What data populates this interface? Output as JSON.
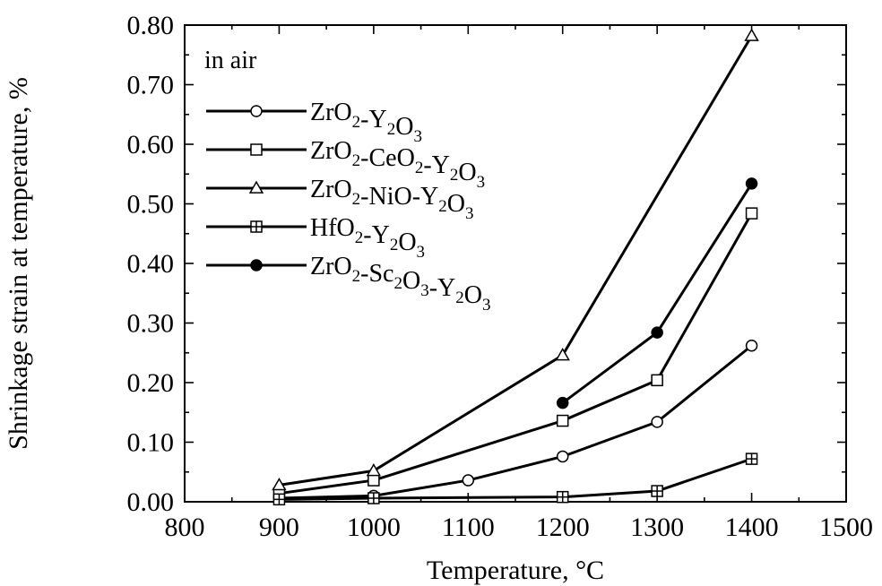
{
  "chart_data": {
    "type": "line",
    "title": "",
    "xlabel": "Temperature, °C",
    "ylabel": "Shrinkage strain at temperature, %",
    "xlim": [
      800,
      1500
    ],
    "ylim": [
      0.0,
      0.8
    ],
    "xticks": [
      800,
      900,
      1000,
      1100,
      1200,
      1300,
      1400,
      1500
    ],
    "xtick_labels": [
      "800",
      "900",
      "1000",
      "1100",
      "1200",
      "1300",
      "1400",
      "1500"
    ],
    "yticks": [
      0.0,
      0.1,
      0.2,
      0.3,
      0.4,
      0.5,
      0.6,
      0.7,
      0.8
    ],
    "ytick_labels": [
      "0.00",
      "0.10",
      "0.20",
      "0.30",
      "0.40",
      "0.50",
      "0.60",
      "0.70",
      "0.80"
    ],
    "grid": false,
    "legend_title": "in air",
    "legend_position": "top-left",
    "series": [
      {
        "name": "ZrO2-Y2O3",
        "marker": "open-circle",
        "x": [
          900,
          1000,
          1100,
          1200,
          1300,
          1400
        ],
        "y": [
          0.006,
          0.01,
          0.036,
          0.076,
          0.134,
          0.262
        ]
      },
      {
        "name": "ZrO2-CeO2-Y2O3",
        "marker": "open-square",
        "x": [
          900,
          1000,
          1200,
          1300,
          1400
        ],
        "y": [
          0.014,
          0.036,
          0.136,
          0.204,
          0.484
        ]
      },
      {
        "name": "ZrO2-NiO-Y2O3",
        "marker": "open-triangle",
        "x": [
          900,
          1000,
          1200,
          1400
        ],
        "y": [
          0.028,
          0.052,
          0.246,
          0.782
        ]
      },
      {
        "name": "HfO2-Y2O3",
        "marker": "crossed-square",
        "x": [
          900,
          1000,
          1200,
          1300,
          1400
        ],
        "y": [
          0.004,
          0.006,
          0.008,
          0.018,
          0.072
        ]
      },
      {
        "name": "ZrO2-Sc2O3-Y2O3",
        "marker": "filled-circle",
        "x": [
          1200,
          1300,
          1400
        ],
        "y": [
          0.166,
          0.284,
          0.534
        ]
      }
    ]
  }
}
